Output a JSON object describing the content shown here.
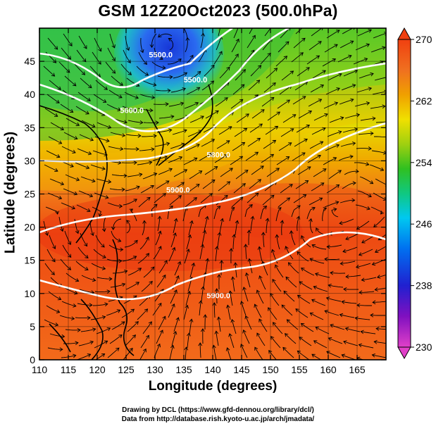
{
  "title": "GSM 12Z20Oct2023 (500.0hPa)",
  "x_axis": {
    "label": "Longitude (degrees)",
    "range": [
      110,
      170
    ],
    "ticks": [
      110,
      115,
      120,
      125,
      130,
      135,
      140,
      145,
      150,
      155,
      160,
      165
    ]
  },
  "y_axis": {
    "label": "Latitude  (degrees)",
    "range": [
      0,
      50
    ],
    "ticks": [
      0,
      5,
      10,
      15,
      20,
      25,
      30,
      35,
      40,
      45
    ]
  },
  "colorbar": {
    "range": [
      230,
      270
    ],
    "ticks": [
      230,
      238,
      246,
      254,
      262,
      270
    ],
    "colors": [
      "#e040c8",
      "#8010c0",
      "#2020d0",
      "#0070f0",
      "#00c8f0",
      "#10c880",
      "#30c020",
      "#a0d010",
      "#f0e000",
      "#f0a000",
      "#f07020",
      "#f04010"
    ]
  },
  "contours": [
    {
      "label": "5500.0",
      "at": [
        137,
        41.8
      ]
    },
    {
      "label": "5600.0",
      "at": [
        126,
        37.2
      ]
    },
    {
      "label": "5800.0",
      "at": [
        141,
        30.5
      ]
    },
    {
      "label": "5900.0",
      "at": [
        134,
        25.2
      ]
    },
    {
      "label": "5900.0",
      "at": [
        141,
        9.3
      ]
    },
    {
      "label": "5500.0",
      "at": [
        131,
        45.6
      ]
    }
  ],
  "credits": {
    "line1": "Drawing by DCL (https://www.gfd-dennou.org/library/dcl/)",
    "line2": "Data from http://database.rish.kyoto-u.ac.jp/arch/jmadata/"
  }
}
